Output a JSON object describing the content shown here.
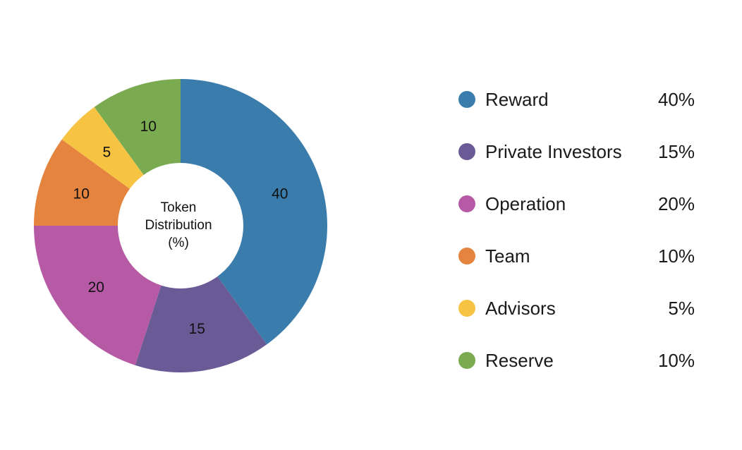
{
  "chart_data": {
    "type": "pie",
    "donut": true,
    "center_label": [
      "Token",
      "Distribution",
      "(%)"
    ],
    "categories": [
      "Reward",
      "Private Investors",
      "Operation",
      "Team",
      "Advisors",
      "Reserve"
    ],
    "values": [
      40,
      15,
      20,
      10,
      5,
      10
    ],
    "slice_labels": [
      "40",
      "15",
      "20",
      "10",
      "5",
      "10"
    ],
    "legend_values": [
      "40%",
      "15%",
      "20%",
      "10%",
      "5%",
      "10%"
    ],
    "colors": [
      "#3a7dad",
      "#6a5b96",
      "#b65aa5",
      "#e5843f",
      "#f6c343",
      "#7aab51"
    ],
    "legend_placement": "right"
  }
}
